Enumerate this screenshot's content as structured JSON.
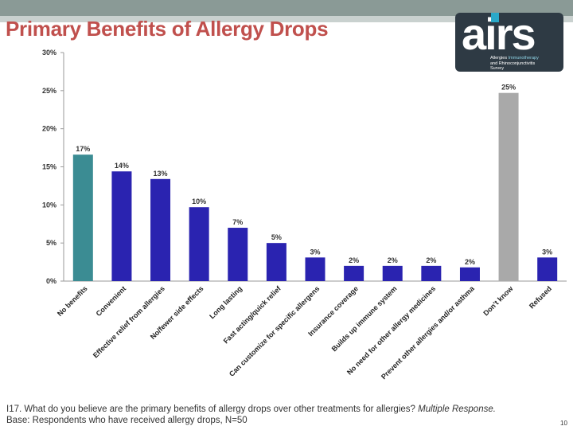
{
  "header": {
    "title": "Primary Benefits of Allergy Drops",
    "logo_text": "airs",
    "logo_tagline_1": "Allergies",
    "logo_tagline_2": "Immunotherapy",
    "logo_tagline_3": "and Rhinoconjunctivitis",
    "logo_tagline_4": "Survey"
  },
  "colors": {
    "teal": "#3b8c93",
    "navy": "#2a23b0",
    "gray": "#a9a9a9",
    "title": "#c0504d"
  },
  "chart_data": {
    "type": "bar",
    "categories": [
      "No benefits",
      "Convenient",
      "Effective relief from allergies",
      "No/fewer side effects",
      "Long lasting",
      "Fast acting/quick relief",
      "Can customize for specific allergens",
      "Insurance coverage",
      "Builds up immune system",
      "No need for other allergy medicines",
      "Prevent other allergies and/or asthma",
      "Don't know",
      "Refused"
    ],
    "values": [
      17,
      14,
      13,
      10,
      7,
      5,
      3,
      2,
      2,
      2,
      2,
      25,
      3
    ],
    "plotted_values": [
      16.6,
      14.4,
      13.4,
      9.7,
      7.0,
      5.0,
      3.1,
      2.0,
      2.0,
      2.0,
      1.8,
      24.7,
      3.1
    ],
    "value_labels": [
      "17%",
      "14%",
      "13%",
      "10%",
      "7%",
      "5%",
      "3%",
      "2%",
      "2%",
      "2%",
      "2%",
      "25%",
      "3%"
    ],
    "bar_colors": [
      "#3b8c93",
      "#2a23b0",
      "#2a23b0",
      "#2a23b0",
      "#2a23b0",
      "#2a23b0",
      "#2a23b0",
      "#2a23b0",
      "#2a23b0",
      "#2a23b0",
      "#2a23b0",
      "#a9a9a9",
      "#2a23b0"
    ],
    "ylim": [
      0,
      30
    ],
    "yticks": [
      0,
      5,
      10,
      15,
      20,
      25,
      30
    ],
    "ytick_labels": [
      "0%",
      "5%",
      "10%",
      "15%",
      "20%",
      "25%",
      "30%"
    ],
    "title": "",
    "xlabel": "",
    "ylabel": "",
    "grid": false,
    "legend": "none"
  },
  "footer": {
    "question": "I17. What do you believe are the primary benefits of allergy drops over other treatments for allergies?",
    "response_type": "Multiple Response.",
    "base": "Base: Respondents who have received allergy drops, N=50",
    "page_number": "10"
  }
}
